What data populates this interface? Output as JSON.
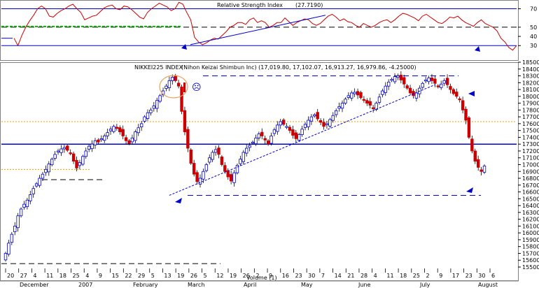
{
  "chart_data": [
    {
      "type": "line",
      "title": "Relative Strength Index",
      "value_label": "(27.7190)",
      "ylim": [
        15,
        78
      ],
      "yticks": [
        70,
        50,
        40,
        30
      ],
      "ytick_labels": [
        "70",
        "50",
        "40",
        "30"
      ],
      "reference_lines": [
        {
          "value": 70,
          "style": "solid",
          "color": "#0000cc"
        },
        {
          "value": 50,
          "style": "dashed",
          "color": "#000000"
        },
        {
          "value": 30,
          "style": "solid",
          "color": "#0000cc"
        }
      ],
      "highlight_level": {
        "value": 50,
        "color": "#00b000"
      },
      "series": [
        {
          "color": "#cc0000",
          "values": [
            38,
            30,
            41,
            50,
            57,
            63,
            70,
            73,
            70,
            62,
            61,
            65,
            68,
            70,
            73,
            75,
            70,
            66,
            58,
            60,
            62,
            63,
            67,
            71,
            73,
            74,
            70,
            69,
            73,
            72,
            69,
            65,
            61,
            59,
            66,
            70,
            73,
            76,
            74,
            72,
            68,
            70,
            77,
            75,
            66,
            58,
            39,
            34,
            31,
            33,
            36,
            38,
            37,
            41,
            45,
            50,
            52,
            55,
            55,
            53,
            58,
            60,
            55,
            57,
            55,
            50,
            52,
            55,
            55,
            60,
            56,
            52,
            55,
            57,
            59,
            58,
            54,
            52,
            54,
            58,
            62,
            64,
            61,
            57,
            59,
            56,
            55,
            52,
            50,
            54,
            52,
            50,
            52,
            55,
            57,
            58,
            55,
            58,
            62,
            65,
            64,
            62,
            60,
            57,
            62,
            64,
            61,
            58,
            55,
            54,
            57,
            61,
            60,
            62,
            58,
            55,
            53,
            51,
            55,
            58,
            54,
            52,
            50,
            46,
            38,
            34,
            28,
            25,
            30
          ]
        }
      ]
    },
    {
      "type": "candlestick",
      "title": "NIKKEI225 INDEX",
      "subtitle": "(Nihon Keizai Shimbun Inc) (17,019.80, 17,102.07, 16,913.27, 16,979.86, -4.25000)",
      "ylim": [
        15500,
        18500
      ],
      "yticks": [
        18500,
        18400,
        18300,
        18200,
        18100,
        18000,
        17900,
        17800,
        17700,
        17600,
        17500,
        17400,
        17300,
        17200,
        17100,
        17000,
        16900,
        16800,
        16700,
        16600,
        16500,
        16400,
        16300,
        16200,
        16100,
        16000,
        15900,
        15800,
        15700,
        15600,
        15500
      ],
      "ytick_labels": [
        "18500",
        "18400",
        "18300",
        "18200",
        "18100",
        "18000",
        "17900",
        "17800",
        "17700",
        "17600",
        "17500",
        "17400",
        "17300",
        "17200",
        "17100",
        "17000",
        "16900",
        "16800",
        "16700",
        "16600",
        "16500",
        "16400",
        "16300",
        "16200",
        "16100",
        "16000",
        "15900",
        "15800",
        "15700",
        "15600",
        "15500"
      ],
      "close_values": [
        15700,
        15850,
        15980,
        16100,
        16250,
        16350,
        16420,
        16480,
        16560,
        16650,
        16720,
        16800,
        16860,
        16930,
        17010,
        17080,
        17150,
        17200,
        17230,
        17250,
        17210,
        17170,
        17050,
        16950,
        17030,
        17120,
        17200,
        17270,
        17300,
        17350,
        17330,
        17380,
        17420,
        17470,
        17520,
        17560,
        17530,
        17480,
        17420,
        17350,
        17310,
        17390,
        17480,
        17540,
        17600,
        17700,
        17760,
        17800,
        17860,
        17940,
        18010,
        18080,
        18150,
        18230,
        18280,
        18230,
        18150,
        17780,
        17480,
        17240,
        17020,
        16860,
        16750,
        16800,
        16900,
        17000,
        17100,
        17180,
        17220,
        17150,
        17000,
        16900,
        16820,
        16760,
        16880,
        16990,
        17080,
        17180,
        17240,
        17280,
        17330,
        17390,
        17450,
        17420,
        17360,
        17300,
        17420,
        17510,
        17580,
        17630,
        17590,
        17560,
        17500,
        17430,
        17380,
        17440,
        17520,
        17590,
        17650,
        17700,
        17730,
        17670,
        17620,
        17560,
        17600,
        17660,
        17720,
        17790,
        17850,
        17900,
        17960,
        18010,
        18050,
        18060,
        18020,
        17980,
        17940,
        17900,
        17870,
        17820,
        17900,
        17990,
        18080,
        18150,
        18210,
        18250,
        18290,
        18300,
        18240,
        18180,
        18120,
        18050,
        18010,
        18050,
        18120,
        18190,
        18240,
        18270,
        18230,
        18190,
        18140,
        18180,
        18230,
        18170,
        18100,
        18040,
        18000,
        17950,
        17800,
        17650,
        17400,
        17200,
        17050,
        16960,
        16900,
        16980
      ],
      "up_color": "#0000cc",
      "down_color": "#cc0000",
      "horizontal_levels": [
        {
          "value": 17300,
          "style": "solid",
          "color": "#0000cc"
        },
        {
          "value": 17630,
          "style": "dotted",
          "color": "#e8a000"
        },
        {
          "value": 16930,
          "style": "dotted",
          "color": "#e8a000"
        },
        {
          "value": 18300,
          "style": "dashed",
          "color": "#0000cc"
        },
        {
          "value": 16550,
          "style": "dashed",
          "color": "#0000cc"
        },
        {
          "value": 16780,
          "style": "dashed",
          "color": "#000000"
        },
        {
          "value": 15550,
          "style": "dashed",
          "color": "#000000"
        }
      ],
      "trendline": {
        "from": [
          53,
          16550
        ],
        "to": [
          139,
          18170
        ],
        "style": "dashed",
        "color": "#0000cc"
      },
      "annotation_symbol": "☹",
      "x_tick_labels": [
        "20",
        "27",
        "4",
        "11",
        "18",
        "25",
        "4",
        "9",
        "15",
        "22",
        "29",
        "5",
        "13",
        "19",
        "26",
        "5",
        "12",
        "19",
        "26",
        "2",
        "9",
        "16",
        "23",
        "30",
        "7",
        "14",
        "21",
        "28",
        "4",
        "11",
        "18",
        "25",
        "2",
        "9",
        "17",
        "23",
        "30",
        "6"
      ],
      "x_month_labels": [
        "December",
        "2007",
        "February",
        "March",
        "April",
        "May",
        "June",
        "July",
        "August"
      ],
      "x_month_overlay_label": "Volume (1)"
    }
  ]
}
